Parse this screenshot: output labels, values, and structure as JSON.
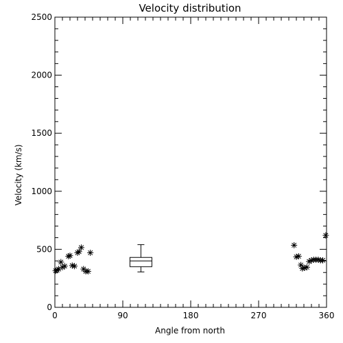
{
  "chart_data": {
    "type": "scatter",
    "title": "Velocity distribution",
    "xlabel": "Angle from north",
    "ylabel": "Velocity (km/s)",
    "xlim": [
      0,
      360
    ],
    "ylim": [
      0,
      2500
    ],
    "xticks": [
      0,
      90,
      180,
      270,
      360
    ],
    "yticks": [
      0,
      500,
      1000,
      1500,
      2000,
      2500
    ],
    "grid": false,
    "points": [
      {
        "x": 1,
        "y": 315
      },
      {
        "x": 3,
        "y": 320
      },
      {
        "x": 5,
        "y": 330
      },
      {
        "x": 8,
        "y": 390
      },
      {
        "x": 10,
        "y": 345
      },
      {
        "x": 13,
        "y": 355
      },
      {
        "x": 18,
        "y": 440
      },
      {
        "x": 20,
        "y": 445
      },
      {
        "x": 23,
        "y": 360
      },
      {
        "x": 26,
        "y": 355
      },
      {
        "x": 30,
        "y": 470
      },
      {
        "x": 32,
        "y": 480
      },
      {
        "x": 35,
        "y": 515
      },
      {
        "x": 38,
        "y": 330
      },
      {
        "x": 41,
        "y": 310
      },
      {
        "x": 44,
        "y": 310
      },
      {
        "x": 47,
        "y": 470
      },
      {
        "x": 317,
        "y": 535
      },
      {
        "x": 320,
        "y": 435
      },
      {
        "x": 323,
        "y": 440
      },
      {
        "x": 326,
        "y": 365
      },
      {
        "x": 328,
        "y": 335
      },
      {
        "x": 331,
        "y": 340
      },
      {
        "x": 334,
        "y": 345
      },
      {
        "x": 337,
        "y": 395
      },
      {
        "x": 340,
        "y": 405
      },
      {
        "x": 343,
        "y": 410
      },
      {
        "x": 346,
        "y": 410
      },
      {
        "x": 349,
        "y": 410
      },
      {
        "x": 352,
        "y": 405
      },
      {
        "x": 355,
        "y": 405
      },
      {
        "x": 359,
        "y": 620
      }
    ],
    "boxplot": {
      "x": 114,
      "min": 305,
      "q1": 350,
      "median": 400,
      "q3": 430,
      "max": 540
    }
  }
}
